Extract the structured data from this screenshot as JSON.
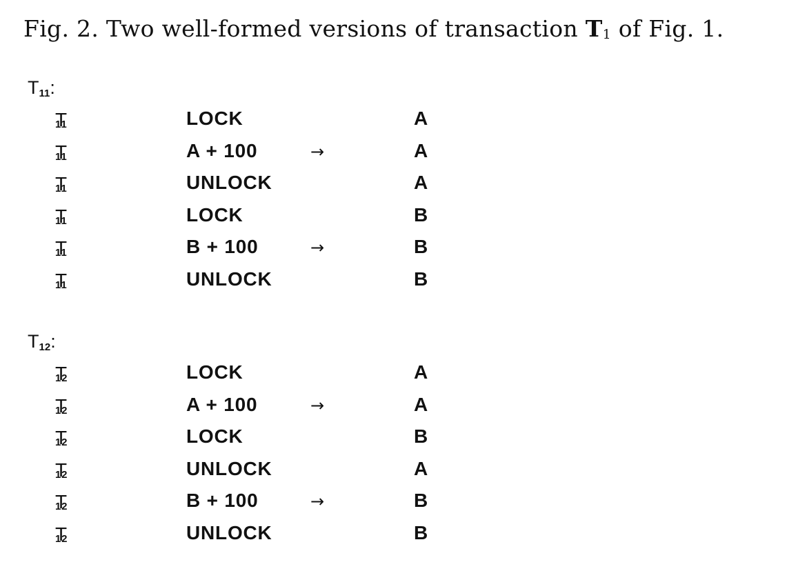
{
  "caption": {
    "prefix": "Fig. 2. Two well-formed versions of transaction ",
    "symbol": "T",
    "symbol_sub": "1",
    "suffix": " of Fig. 1."
  },
  "blocks": [
    {
      "header": "T",
      "header_sub": "11",
      "header_suffix": ":",
      "rows": [
        {
          "t": "T",
          "t_sub": "11",
          "op": "LOCK",
          "arrow": "",
          "target": "A"
        },
        {
          "t": "T",
          "t_sub": "11",
          "op": "A + 100",
          "arrow": "→",
          "target": "A"
        },
        {
          "t": "T",
          "t_sub": "11",
          "op": "UNLOCK",
          "arrow": "",
          "target": "A"
        },
        {
          "t": "T",
          "t_sub": "11",
          "op": "LOCK",
          "arrow": "",
          "target": "B"
        },
        {
          "t": "T",
          "t_sub": "11",
          "op": "B + 100",
          "arrow": "→",
          "target": "B"
        },
        {
          "t": "T",
          "t_sub": "11",
          "op": "UNLOCK",
          "arrow": "",
          "target": "B"
        }
      ]
    },
    {
      "header": "T",
      "header_sub": "12",
      "header_suffix": ":",
      "rows": [
        {
          "t": "T",
          "t_sub": "12",
          "op": "LOCK",
          "arrow": "",
          "target": "A"
        },
        {
          "t": "T",
          "t_sub": "12",
          "op": "A + 100",
          "arrow": "→",
          "target": "A"
        },
        {
          "t": "T",
          "t_sub": "12",
          "op": "LOCK",
          "arrow": "",
          "target": "B"
        },
        {
          "t": "T",
          "t_sub": "12",
          "op": "UNLOCK",
          "arrow": "",
          "target": "A"
        },
        {
          "t": "T",
          "t_sub": "12",
          "op": "B + 100",
          "arrow": "→",
          "target": "B"
        },
        {
          "t": "T",
          "t_sub": "12",
          "op": "UNLOCK",
          "arrow": "",
          "target": "B"
        }
      ]
    }
  ]
}
